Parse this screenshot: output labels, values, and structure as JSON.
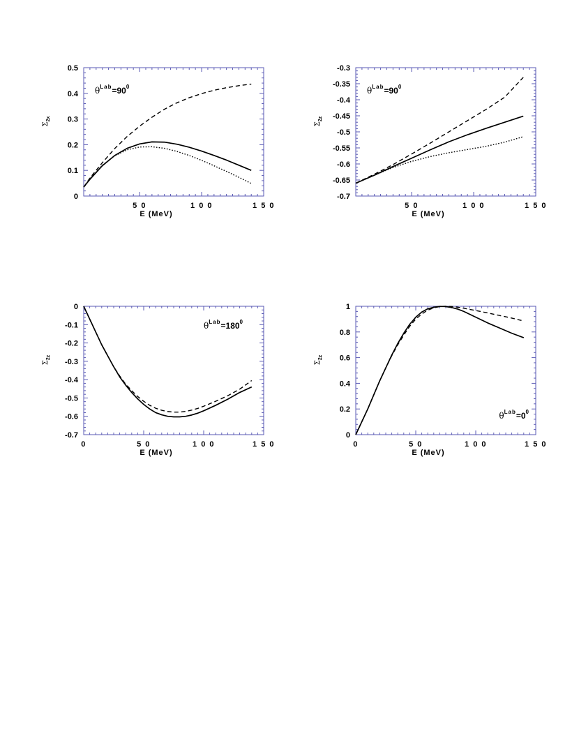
{
  "chart_data": [
    {
      "type": "line",
      "xlabel": "E  (MeV)",
      "ylabel": "Σ",
      "ylabel_sub": "2x",
      "annotation": {
        "symbol": "θ",
        "sup": "Lab",
        "value": "=90",
        "exp": "0"
      },
      "annotation_position": "top-left",
      "xlim": [
        5,
        150
      ],
      "ylim": [
        0,
        0.5
      ],
      "xticks": [
        50,
        100,
        150
      ],
      "xtick_labels": [
        "5 0",
        "1 0 0",
        "1 5 0"
      ],
      "yticks": [
        0,
        0.1,
        0.2,
        0.3,
        0.4,
        0.5
      ],
      "ytick_labels": [
        "0",
        "0.1",
        "0.2",
        "0.3",
        "0.4",
        "0.5"
      ],
      "series": [
        {
          "style": "solid",
          "points": [
            [
              5,
              0.035
            ],
            [
              10,
              0.065
            ],
            [
              20,
              0.118
            ],
            [
              30,
              0.158
            ],
            [
              40,
              0.186
            ],
            [
              50,
              0.203
            ],
            [
              60,
              0.211
            ],
            [
              70,
              0.21
            ],
            [
              80,
              0.202
            ],
            [
              90,
              0.19
            ],
            [
              100,
              0.175
            ],
            [
              110,
              0.158
            ],
            [
              120,
              0.14
            ],
            [
              130,
              0.12
            ],
            [
              140,
              0.1
            ]
          ]
        },
        {
          "style": "dashed",
          "points": [
            [
              5,
              0.035
            ],
            [
              10,
              0.07
            ],
            [
              20,
              0.13
            ],
            [
              30,
              0.185
            ],
            [
              40,
              0.232
            ],
            [
              50,
              0.272
            ],
            [
              60,
              0.307
            ],
            [
              70,
              0.338
            ],
            [
              80,
              0.363
            ],
            [
              90,
              0.383
            ],
            [
              100,
              0.399
            ],
            [
              110,
              0.412
            ],
            [
              120,
              0.422
            ],
            [
              130,
              0.43
            ],
            [
              140,
              0.436
            ]
          ]
        },
        {
          "style": "dotted",
          "points": [
            [
              5,
              0.035
            ],
            [
              10,
              0.068
            ],
            [
              20,
              0.12
            ],
            [
              30,
              0.157
            ],
            [
              40,
              0.18
            ],
            [
              50,
              0.191
            ],
            [
              60,
              0.192
            ],
            [
              70,
              0.186
            ],
            [
              80,
              0.174
            ],
            [
              90,
              0.158
            ],
            [
              100,
              0.139
            ],
            [
              110,
              0.118
            ],
            [
              120,
              0.096
            ],
            [
              130,
              0.073
            ],
            [
              140,
              0.049
            ]
          ]
        }
      ]
    },
    {
      "type": "line",
      "xlabel": "E  (MeV)",
      "ylabel": "Σ",
      "ylabel_sub": "2z",
      "annotation": {
        "symbol": "θ",
        "sup": "Lab",
        "value": "=90",
        "exp": "0"
      },
      "annotation_position": "top-left",
      "xlim": [
        5,
        150
      ],
      "ylim": [
        -0.7,
        -0.3
      ],
      "xticks": [
        50,
        100,
        150
      ],
      "xtick_labels": [
        "5 0",
        "1 0 0",
        "1 5 0"
      ],
      "yticks": [
        -0.7,
        -0.65,
        -0.6,
        -0.55,
        -0.5,
        -0.45,
        -0.4,
        -0.35,
        -0.3
      ],
      "ytick_labels": [
        "-0.7",
        "-0.65",
        "-0.6",
        "-0.55",
        "-0.5",
        "-0.45",
        "-0.4",
        "-0.35",
        "-0.3"
      ],
      "series": [
        {
          "style": "solid",
          "points": [
            [
              5,
              -0.66
            ],
            [
              20,
              -0.635
            ],
            [
              35,
              -0.608
            ],
            [
              50,
              -0.582
            ],
            [
              65,
              -0.556
            ],
            [
              80,
              -0.531
            ],
            [
              95,
              -0.509
            ],
            [
              110,
              -0.489
            ],
            [
              125,
              -0.47
            ],
            [
              140,
              -0.451
            ]
          ]
        },
        {
          "style": "dashed",
          "points": [
            [
              5,
              -0.66
            ],
            [
              20,
              -0.632
            ],
            [
              35,
              -0.602
            ],
            [
              50,
              -0.569
            ],
            [
              65,
              -0.535
            ],
            [
              80,
              -0.5
            ],
            [
              95,
              -0.465
            ],
            [
              110,
              -0.43
            ],
            [
              125,
              -0.392
            ],
            [
              140,
              -0.33
            ]
          ]
        },
        {
          "style": "dotted",
          "points": [
            [
              5,
              -0.66
            ],
            [
              20,
              -0.635
            ],
            [
              35,
              -0.611
            ],
            [
              50,
              -0.592
            ],
            [
              65,
              -0.577
            ],
            [
              80,
              -0.565
            ],
            [
              95,
              -0.555
            ],
            [
              110,
              -0.545
            ],
            [
              125,
              -0.532
            ],
            [
              140,
              -0.515
            ]
          ]
        }
      ]
    },
    {
      "type": "line",
      "xlabel": "E  (MeV)",
      "ylabel": "Σ",
      "ylabel_sub": "2z",
      "annotation": {
        "symbol": "θ",
        "sup": "Lab",
        "value": "=180",
        "exp": "0"
      },
      "annotation_position": "top-right",
      "xlim": [
        0,
        150
      ],
      "ylim": [
        -0.7,
        0
      ],
      "xticks": [
        0,
        50,
        100,
        150
      ],
      "xtick_labels": [
        "0",
        "5 0",
        "1 0 0",
        "1 5 0"
      ],
      "yticks": [
        -0.7,
        -0.6,
        -0.5,
        -0.4,
        -0.3,
        -0.2,
        -0.1,
        0
      ],
      "ytick_labels": [
        "-0.7",
        "-0.6",
        "-0.5",
        "-0.4",
        "-0.3",
        "-0.2",
        "-0.1",
        "0"
      ],
      "series": [
        {
          "style": "solid",
          "points": [
            [
              0,
              0
            ],
            [
              5,
              -0.07
            ],
            [
              10,
              -0.14
            ],
            [
              15,
              -0.21
            ],
            [
              20,
              -0.27
            ],
            [
              25,
              -0.33
            ],
            [
              30,
              -0.385
            ],
            [
              35,
              -0.43
            ],
            [
              40,
              -0.47
            ],
            [
              45,
              -0.505
            ],
            [
              50,
              -0.535
            ],
            [
              55,
              -0.56
            ],
            [
              60,
              -0.58
            ],
            [
              65,
              -0.592
            ],
            [
              70,
              -0.6
            ],
            [
              75,
              -0.603
            ],
            [
              80,
              -0.603
            ],
            [
              85,
              -0.6
            ],
            [
              90,
              -0.593
            ],
            [
              95,
              -0.583
            ],
            [
              100,
              -0.57
            ],
            [
              110,
              -0.54
            ],
            [
              120,
              -0.507
            ],
            [
              130,
              -0.47
            ],
            [
              140,
              -0.44
            ]
          ]
        },
        {
          "style": "dashed",
          "points": [
            [
              0,
              0
            ],
            [
              5,
              -0.07
            ],
            [
              10,
              -0.14
            ],
            [
              15,
              -0.21
            ],
            [
              20,
              -0.27
            ],
            [
              25,
              -0.33
            ],
            [
              30,
              -0.38
            ],
            [
              35,
              -0.425
            ],
            [
              40,
              -0.46
            ],
            [
              45,
              -0.492
            ],
            [
              50,
              -0.518
            ],
            [
              55,
              -0.54
            ],
            [
              60,
              -0.556
            ],
            [
              65,
              -0.567
            ],
            [
              70,
              -0.574
            ],
            [
              75,
              -0.577
            ],
            [
              80,
              -0.577
            ],
            [
              85,
              -0.573
            ],
            [
              90,
              -0.566
            ],
            [
              95,
              -0.557
            ],
            [
              100,
              -0.545
            ],
            [
              110,
              -0.518
            ],
            [
              120,
              -0.488
            ],
            [
              130,
              -0.452
            ],
            [
              140,
              -0.405
            ]
          ]
        }
      ]
    },
    {
      "type": "line",
      "xlabel": "E  (MeV)",
      "ylabel": "Σ",
      "ylabel_sub": "2z",
      "annotation": {
        "symbol": "θ",
        "sup": "Lab",
        "value": "=0",
        "exp": "0"
      },
      "annotation_position": "bottom-right",
      "xlim": [
        0,
        150
      ],
      "ylim": [
        0,
        1
      ],
      "xticks": [
        0,
        50,
        100,
        150
      ],
      "xtick_labels": [
        "0",
        "5 0",
        "1 0 0",
        "1 5 0"
      ],
      "yticks": [
        0,
        0.2,
        0.4,
        0.6,
        0.8,
        1
      ],
      "ytick_labels": [
        "0",
        "0.2",
        "0.4",
        "0.6",
        "0.8",
        "1"
      ],
      "series": [
        {
          "style": "solid",
          "points": [
            [
              0,
              0
            ],
            [
              5,
              0.1
            ],
            [
              10,
              0.2
            ],
            [
              15,
              0.31
            ],
            [
              20,
              0.42
            ],
            [
              25,
              0.52
            ],
            [
              30,
              0.62
            ],
            [
              35,
              0.71
            ],
            [
              40,
              0.79
            ],
            [
              45,
              0.86
            ],
            [
              50,
              0.915
            ],
            [
              55,
              0.955
            ],
            [
              60,
              0.98
            ],
            [
              65,
              0.993
            ],
            [
              70,
              0.999
            ],
            [
              75,
              0.998
            ],
            [
              80,
              0.99
            ],
            [
              85,
              0.978
            ],
            [
              90,
              0.96
            ],
            [
              100,
              0.915
            ],
            [
              110,
              0.87
            ],
            [
              120,
              0.83
            ],
            [
              130,
              0.79
            ],
            [
              140,
              0.755
            ]
          ]
        },
        {
          "style": "dashed",
          "points": [
            [
              0,
              0
            ],
            [
              5,
              0.1
            ],
            [
              10,
              0.2
            ],
            [
              15,
              0.31
            ],
            [
              20,
              0.42
            ],
            [
              25,
              0.52
            ],
            [
              30,
              0.615
            ],
            [
              35,
              0.7
            ],
            [
              40,
              0.775
            ],
            [
              45,
              0.845
            ],
            [
              50,
              0.9
            ],
            [
              55,
              0.94
            ],
            [
              60,
              0.97
            ],
            [
              65,
              0.988
            ],
            [
              70,
              0.998
            ],
            [
              75,
              1.0
            ],
            [
              80,
              0.998
            ],
            [
              85,
              0.993
            ],
            [
              90,
              0.985
            ],
            [
              100,
              0.967
            ],
            [
              110,
              0.948
            ],
            [
              120,
              0.928
            ],
            [
              130,
              0.908
            ],
            [
              140,
              0.885
            ]
          ]
        }
      ]
    }
  ]
}
